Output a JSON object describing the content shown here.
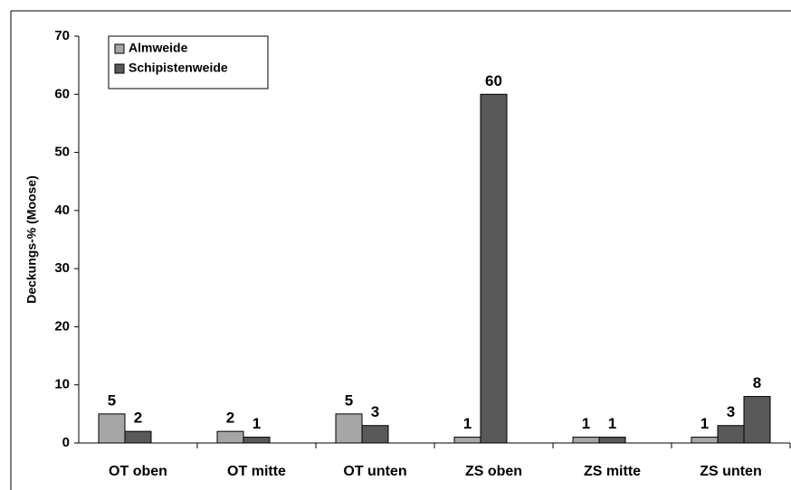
{
  "chart_data": {
    "type": "bar",
    "y_label": "Deckungs-% (Moose)",
    "categories": [
      "OT oben",
      "OT mitte",
      "OT unten",
      "ZS oben",
      "ZS mitte",
      "ZS unten"
    ],
    "series": [
      {
        "name": "Almweide",
        "color": "#a6a6a6",
        "values": [
          5,
          2,
          5,
          1,
          1,
          1
        ]
      },
      {
        "name": "Schipistenweide",
        "color": "#595959",
        "values": [
          2,
          1,
          3,
          60,
          1,
          3
        ]
      },
      {
        "color": "#595959",
        "values": [
          null,
          null,
          null,
          null,
          null,
          8
        ]
      }
    ],
    "ylim": [
      0,
      70
    ],
    "yticks": [
      0,
      10,
      20,
      30,
      40,
      50,
      60,
      70
    ],
    "legend": "upper left"
  }
}
